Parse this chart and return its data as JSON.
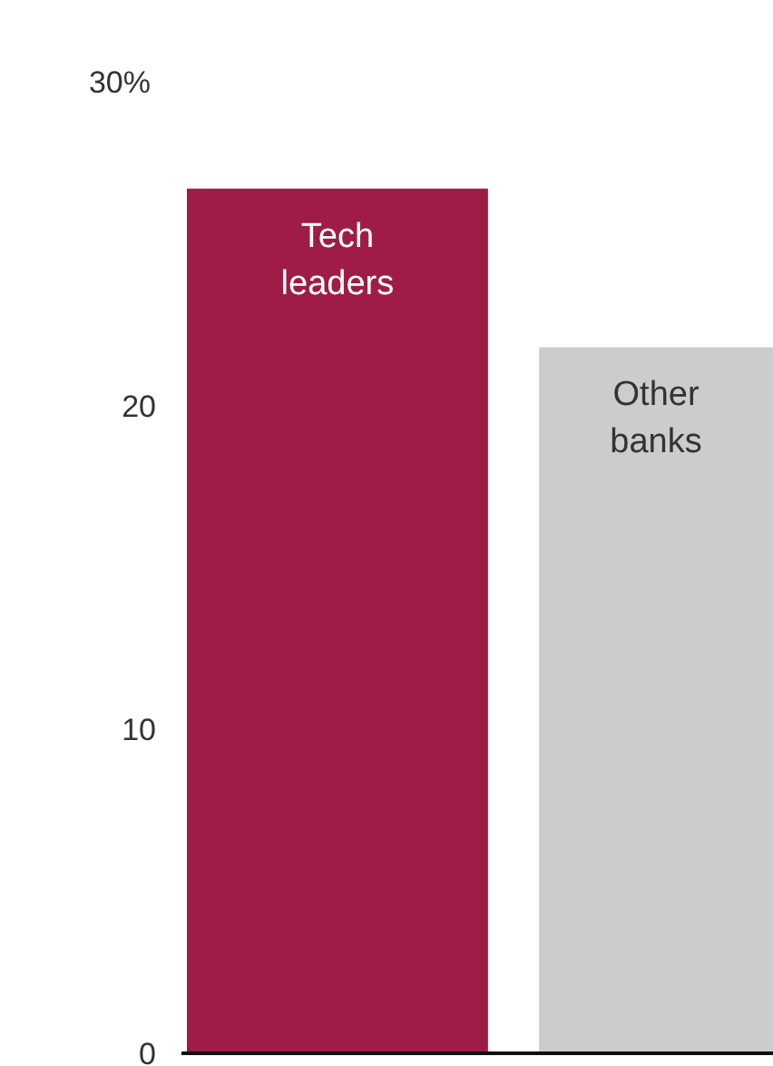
{
  "chart_data": {
    "type": "bar",
    "categories": [
      "Tech leaders",
      "Other banks"
    ],
    "values": [
      26.7,
      21.8
    ],
    "colors": [
      "#9e1c45",
      "#cccccc"
    ],
    "ylim": [
      0,
      30
    ],
    "yticks": [
      0,
      10,
      20,
      {
        "value": 30,
        "label": "30%"
      }
    ],
    "grid": false
  }
}
